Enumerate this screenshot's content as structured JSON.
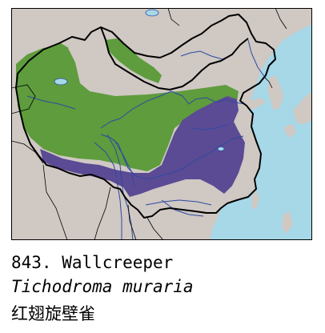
{
  "caption": {
    "number_name": "843. Wallcreeper",
    "scientific_name": "Tichodroma muraria",
    "chinese_name": "红翅旋壁雀"
  },
  "map": {
    "sea_color": "#a6d8e8",
    "land_color": "#cfc8c3",
    "range_resident_color": "#5b4a94",
    "range_breeding_color": "#5e9c3d",
    "border_color": "#000000",
    "river_color": "#2e4aa0"
  }
}
